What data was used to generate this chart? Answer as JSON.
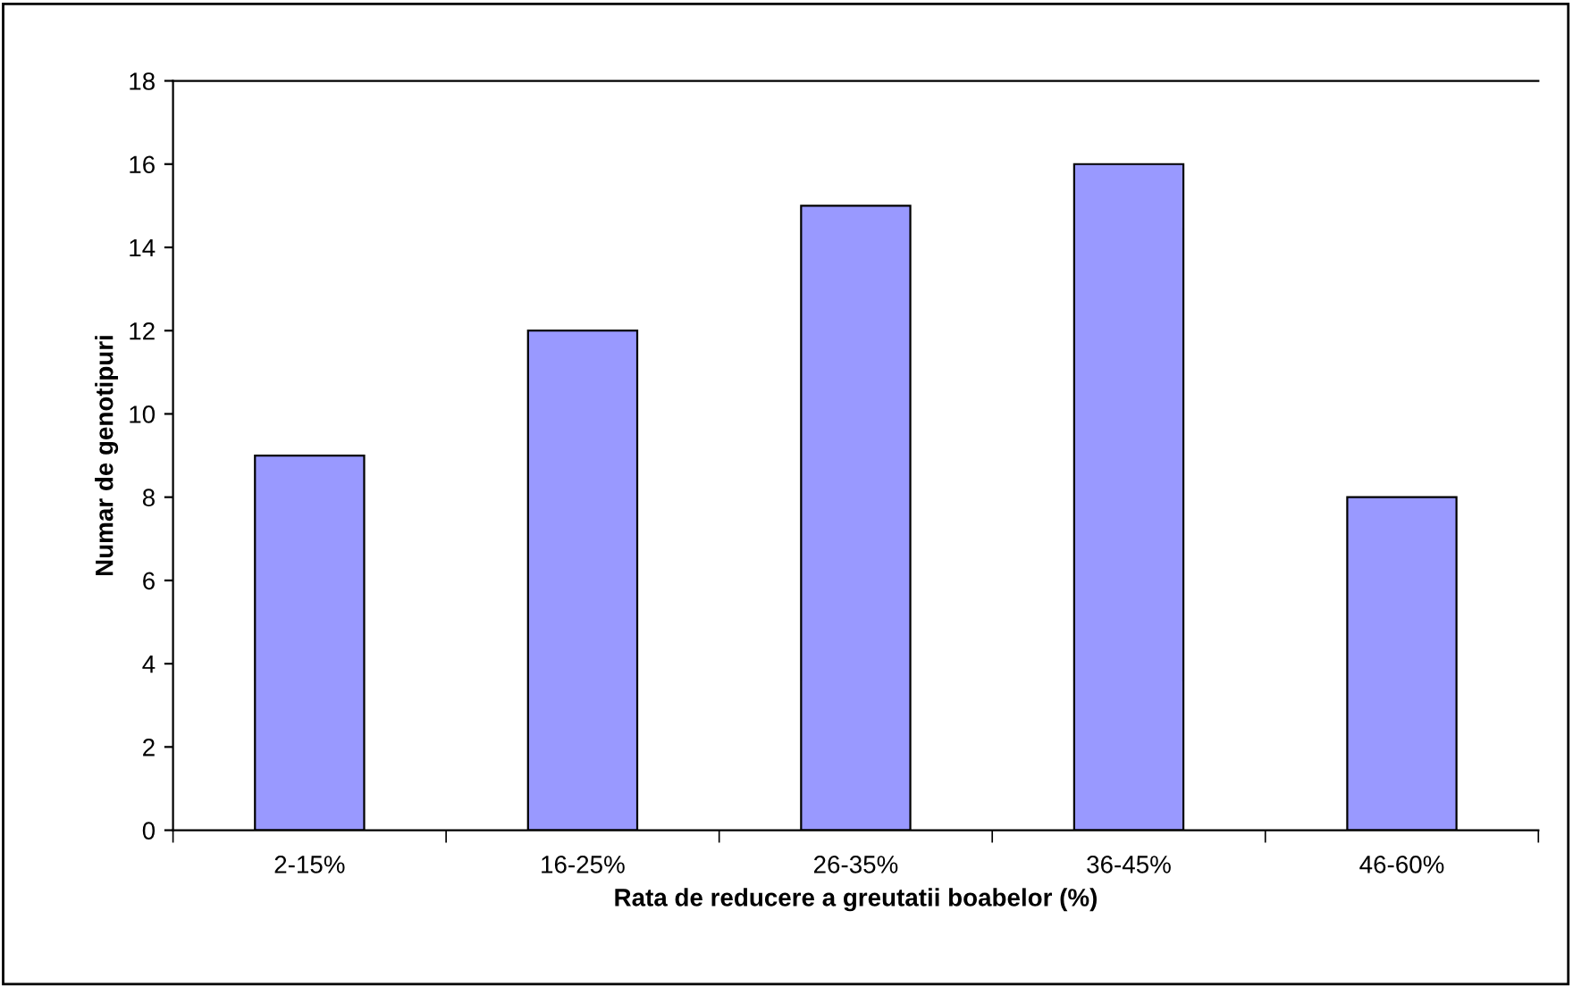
{
  "chart_data": {
    "type": "bar",
    "xlabel": "Rata de reducere a greutatii boabelor (%)",
    "ylabel": "Numar de genotipuri",
    "categories": [
      "2-15%",
      "16-25%",
      "26-35%",
      "36-45%",
      "46-60%"
    ],
    "values": [
      9,
      12,
      15,
      16,
      8
    ],
    "color": "#9999ff",
    "ylim": [
      0,
      18
    ],
    "yticks": [
      0,
      2,
      4,
      6,
      8,
      10,
      12,
      14,
      16,
      18
    ],
    "grid": false,
    "legend": false
  }
}
